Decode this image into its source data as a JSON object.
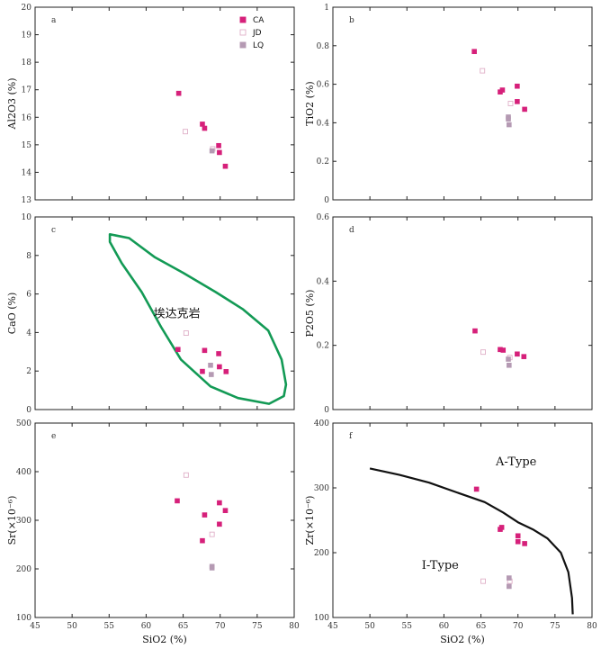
{
  "chart_data": [
    {
      "id": "a",
      "type": "scatter",
      "panel_label": "a",
      "xlabel": "",
      "ylabel": "Al2O3 (%)",
      "xlim": [
        45,
        80
      ],
      "ylim": [
        13,
        20
      ],
      "xticks": [
        45,
        50,
        55,
        60,
        65,
        70,
        75,
        80
      ],
      "show_xtick_labels": false,
      "yticks": [
        13,
        14,
        15,
        16,
        17,
        18,
        19,
        20
      ],
      "legend": {
        "position": "top-right",
        "entries": [
          {
            "name": "CA",
            "color": "#d6207a",
            "filled": true
          },
          {
            "name": "JD",
            "color": "#e0b0c8",
            "filled": false
          },
          {
            "name": "LQ",
            "color": "#b59ab3",
            "filled": true
          }
        ]
      },
      "series": [
        {
          "name": "CA",
          "points": [
            [
              64.4,
              16.87
            ],
            [
              67.6,
              15.75
            ],
            [
              67.9,
              15.6
            ],
            [
              69.8,
              14.97
            ],
            [
              69.9,
              14.72
            ],
            [
              70.7,
              14.22
            ]
          ]
        },
        {
          "name": "JD",
          "points": [
            [
              65.3,
              15.48
            ],
            [
              69.0,
              14.85
            ]
          ]
        },
        {
          "name": "LQ",
          "points": [
            [
              68.9,
              14.78
            ]
          ]
        }
      ]
    },
    {
      "id": "b",
      "type": "scatter",
      "panel_label": "b",
      "xlabel": "",
      "ylabel": "TiO2 (%)",
      "xlim": [
        45,
        80
      ],
      "ylim": [
        0,
        1.0
      ],
      "xticks": [
        45,
        50,
        55,
        60,
        65,
        70,
        75,
        80
      ],
      "show_xtick_labels": false,
      "yticks": [
        0,
        0.2,
        0.4,
        0.6,
        0.8,
        1.0
      ],
      "series": [
        {
          "name": "CA",
          "points": [
            [
              64.1,
              0.77
            ],
            [
              67.6,
              0.56
            ],
            [
              67.9,
              0.57
            ],
            [
              69.9,
              0.59
            ],
            [
              69.9,
              0.51
            ],
            [
              70.9,
              0.47
            ]
          ]
        },
        {
          "name": "JD",
          "points": [
            [
              65.2,
              0.67
            ],
            [
              69.0,
              0.5
            ]
          ]
        },
        {
          "name": "LQ",
          "points": [
            [
              68.7,
              0.43
            ],
            [
              68.7,
              0.42
            ],
            [
              68.8,
              0.39
            ]
          ]
        }
      ]
    },
    {
      "id": "c",
      "type": "scatter",
      "panel_label": "c",
      "xlabel": "",
      "ylabel": "CaO (%)",
      "xlim": [
        45,
        80
      ],
      "ylim": [
        0,
        10
      ],
      "xticks": [
        45,
        50,
        55,
        60,
        65,
        70,
        75,
        80
      ],
      "show_xtick_labels": false,
      "yticks": [
        0,
        2,
        4,
        6,
        8,
        10
      ],
      "annotation": "埃达克岩",
      "region": [
        [
          55.1,
          9.1
        ],
        [
          57.7,
          8.9
        ],
        [
          61.2,
          7.9
        ],
        [
          65.0,
          7.1
        ],
        [
          69.4,
          6.1
        ],
        [
          73.1,
          5.2
        ],
        [
          76.5,
          4.1
        ],
        [
          78.3,
          2.6
        ],
        [
          78.9,
          1.3
        ],
        [
          78.6,
          0.7
        ],
        [
          76.6,
          0.3
        ],
        [
          72.4,
          0.6
        ],
        [
          68.7,
          1.2
        ],
        [
          64.7,
          2.6
        ],
        [
          62.0,
          4.3
        ],
        [
          59.4,
          6.1
        ],
        [
          56.7,
          7.6
        ],
        [
          55.1,
          8.7
        ]
      ],
      "series": [
        {
          "name": "CA",
          "points": [
            [
              64.3,
              3.12
            ],
            [
              67.6,
              1.98
            ],
            [
              67.9,
              3.07
            ],
            [
              69.8,
              2.9
            ],
            [
              69.9,
              2.22
            ],
            [
              70.8,
              1.97
            ]
          ]
        },
        {
          "name": "JD",
          "points": [
            [
              65.4,
              3.97
            ]
          ]
        },
        {
          "name": "LQ",
          "points": [
            [
              68.7,
              2.3
            ],
            [
              68.8,
              1.82
            ]
          ]
        }
      ]
    },
    {
      "id": "d",
      "type": "scatter",
      "panel_label": "d",
      "xlabel": "",
      "ylabel": "P2O5 (%)",
      "xlim": [
        45,
        80
      ],
      "ylim": [
        0,
        0.6
      ],
      "xticks": [
        45,
        50,
        55,
        60,
        65,
        70,
        75,
        80
      ],
      "show_xtick_labels": false,
      "yticks": [
        0,
        0.2,
        0.4,
        0.6
      ],
      "series": [
        {
          "name": "CA",
          "points": [
            [
              64.2,
              0.245
            ],
            [
              67.6,
              0.187
            ],
            [
              68.0,
              0.185
            ],
            [
              69.9,
              0.173
            ],
            [
              70.8,
              0.165
            ]
          ]
        },
        {
          "name": "JD",
          "points": [
            [
              65.3,
              0.179
            ],
            [
              68.9,
              0.162
            ]
          ]
        },
        {
          "name": "LQ",
          "points": [
            [
              68.7,
              0.157
            ],
            [
              68.8,
              0.138
            ]
          ]
        }
      ]
    },
    {
      "id": "e",
      "type": "scatter",
      "panel_label": "e",
      "xlabel": "SiO2 (%)",
      "ylabel": "Sr(×10⁻⁶)",
      "xlim": [
        45,
        80
      ],
      "ylim": [
        100,
        500
      ],
      "xticks": [
        45,
        50,
        55,
        60,
        65,
        70,
        75,
        80
      ],
      "show_xtick_labels": true,
      "yticks": [
        100,
        200,
        300,
        400,
        500
      ],
      "series": [
        {
          "name": "CA",
          "points": [
            [
              64.2,
              340
            ],
            [
              67.6,
              258
            ],
            [
              67.9,
              311
            ],
            [
              69.9,
              336
            ],
            [
              69.9,
              292
            ],
            [
              70.7,
              320
            ]
          ]
        },
        {
          "name": "JD",
          "points": [
            [
              65.4,
              393
            ],
            [
              68.9,
              271
            ]
          ]
        },
        {
          "name": "LQ",
          "points": [
            [
              68.9,
              205
            ],
            [
              68.9,
              202
            ]
          ]
        }
      ]
    },
    {
      "id": "f",
      "type": "scatter",
      "panel_label": "f",
      "xlabel": "SiO2 (%)",
      "ylabel": "Zr(×10⁻⁶)",
      "xlim": [
        45,
        80
      ],
      "ylim": [
        100,
        400
      ],
      "xticks": [
        45,
        50,
        55,
        60,
        65,
        70,
        75,
        80
      ],
      "show_xtick_labels": true,
      "yticks": [
        100,
        200,
        300,
        400
      ],
      "regions": [
        {
          "label": "A-Type"
        },
        {
          "label": "I-Type"
        }
      ],
      "boundary": [
        [
          50,
          330
        ],
        [
          54,
          320
        ],
        [
          58,
          308
        ],
        [
          62,
          292
        ],
        [
          65.5,
          278
        ],
        [
          68,
          262
        ],
        [
          70,
          247
        ],
        [
          72,
          236
        ],
        [
          74,
          222
        ],
        [
          75.8,
          200
        ],
        [
          76.8,
          170
        ],
        [
          77.3,
          130
        ],
        [
          77.4,
          105
        ]
      ],
      "series": [
        {
          "name": "CA",
          "points": [
            [
              64.4,
              298
            ],
            [
              67.6,
              236
            ],
            [
              67.8,
              239
            ],
            [
              70.0,
              226
            ],
            [
              70.0,
              217
            ],
            [
              70.9,
              214
            ]
          ]
        },
        {
          "name": "JD",
          "points": [
            [
              65.3,
              156
            ],
            [
              68.9,
              156
            ]
          ]
        },
        {
          "name": "LQ",
          "points": [
            [
              68.8,
              161
            ],
            [
              68.8,
              148
            ]
          ]
        }
      ]
    }
  ]
}
